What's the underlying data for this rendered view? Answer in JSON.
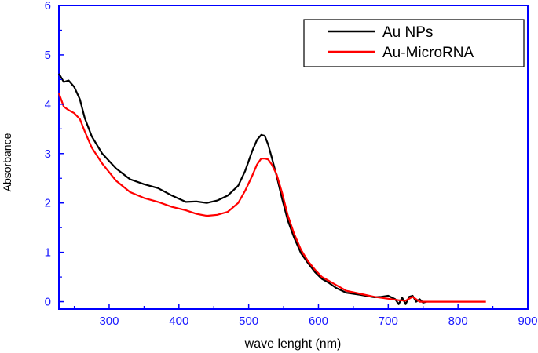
{
  "chart_data": {
    "type": "line",
    "title": "",
    "xlabel": "wave lenght (nm)",
    "ylabel": "Absorbance",
    "xlim": [
      228,
      900
    ],
    "ylim": [
      -0.15,
      6
    ],
    "xticks": [
      300,
      400,
      500,
      600,
      700,
      800,
      900
    ],
    "yticks": [
      0,
      1,
      2,
      3,
      4,
      5,
      6
    ],
    "xtick_labels": [
      "300",
      "400",
      "500",
      "600",
      "700",
      "800",
      "900"
    ],
    "ytick_labels": [
      "0",
      "1",
      "2",
      "3",
      "4",
      "5",
      "6"
    ],
    "grid": false,
    "legend_position": "top-right",
    "axis_color": "#0000ff",
    "series": [
      {
        "name": "Au NPs",
        "color": "#000000",
        "x": [
          228,
          235,
          242,
          250,
          258,
          265,
          275,
          290,
          310,
          330,
          350,
          370,
          390,
          410,
          425,
          440,
          455,
          470,
          485,
          495,
          505,
          512,
          518,
          523,
          528,
          533,
          540,
          548,
          556,
          565,
          575,
          585,
          595,
          605,
          615,
          625,
          640,
          660,
          680,
          690,
          700,
          710,
          715,
          720,
          725,
          730,
          735,
          740,
          745,
          750,
          755
        ],
        "y": [
          4.62,
          4.45,
          4.48,
          4.35,
          4.1,
          3.72,
          3.35,
          3.0,
          2.7,
          2.48,
          2.38,
          2.3,
          2.15,
          2.02,
          2.03,
          2.0,
          2.05,
          2.15,
          2.35,
          2.65,
          3.05,
          3.28,
          3.38,
          3.36,
          3.18,
          2.92,
          2.55,
          2.08,
          1.65,
          1.3,
          0.98,
          0.78,
          0.6,
          0.46,
          0.38,
          0.28,
          0.18,
          0.14,
          0.09,
          0.1,
          0.12,
          0.05,
          -0.05,
          0.08,
          -0.05,
          0.1,
          0.12,
          0.0,
          0.05,
          -0.02,
          0.0
        ]
      },
      {
        "name": "Au-MicroRNA",
        "color": "#ff0000",
        "x": [
          228,
          235,
          242,
          250,
          258,
          265,
          275,
          290,
          310,
          330,
          350,
          370,
          390,
          410,
          425,
          440,
          455,
          470,
          485,
          495,
          505,
          512,
          518,
          523,
          528,
          533,
          540,
          548,
          556,
          565,
          575,
          585,
          595,
          605,
          615,
          625,
          640,
          660,
          680,
          700,
          715,
          725,
          735,
          745,
          760,
          780,
          800,
          820,
          840
        ],
        "y": [
          4.22,
          3.95,
          3.88,
          3.82,
          3.7,
          3.45,
          3.12,
          2.8,
          2.45,
          2.22,
          2.1,
          2.02,
          1.92,
          1.85,
          1.78,
          1.74,
          1.76,
          1.82,
          2.0,
          2.25,
          2.55,
          2.78,
          2.9,
          2.9,
          2.88,
          2.78,
          2.58,
          2.2,
          1.75,
          1.38,
          1.05,
          0.82,
          0.65,
          0.5,
          0.42,
          0.34,
          0.22,
          0.16,
          0.1,
          0.06,
          0.03,
          0.02,
          0.1,
          0.0,
          0.0,
          0.0,
          0.0,
          0.0,
          0.0
        ]
      }
    ]
  }
}
